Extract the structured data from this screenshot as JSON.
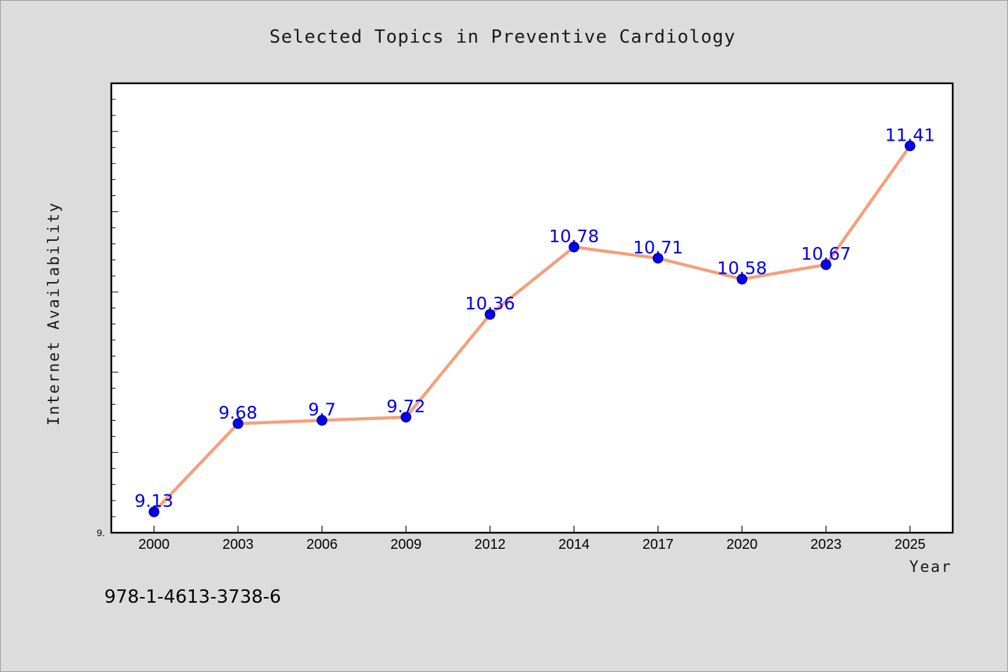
{
  "chart_data": {
    "type": "line",
    "title": "Selected Topics in Preventive Cardiology",
    "xlabel": "Year",
    "ylabel": "Internet Availability",
    "categories": [
      "2000",
      "2003",
      "2006",
      "2009",
      "2012",
      "2014",
      "2017",
      "2020",
      "2023",
      "2025"
    ],
    "values": [
      9.13,
      9.68,
      9.7,
      9.72,
      10.36,
      10.78,
      10.71,
      10.58,
      10.67,
      11.41
    ],
    "data_labels": [
      "9.13",
      "9.68",
      "9.7",
      "9.72",
      "10.36",
      "10.78",
      "10.71",
      "10.58",
      "10.67",
      "11.41"
    ],
    "ylim": [
      9.0,
      11.8
    ],
    "y_tick_label_min": "9.",
    "grid": false,
    "legend": "none",
    "colors": {
      "line": "#f4a07c",
      "marker": "#0000ee",
      "data_label": "#0000ee",
      "plot_background": "#ffffff",
      "page_background": "#dcdcdc"
    }
  },
  "footer": {
    "isbn": "978-1-4613-3738-6"
  }
}
